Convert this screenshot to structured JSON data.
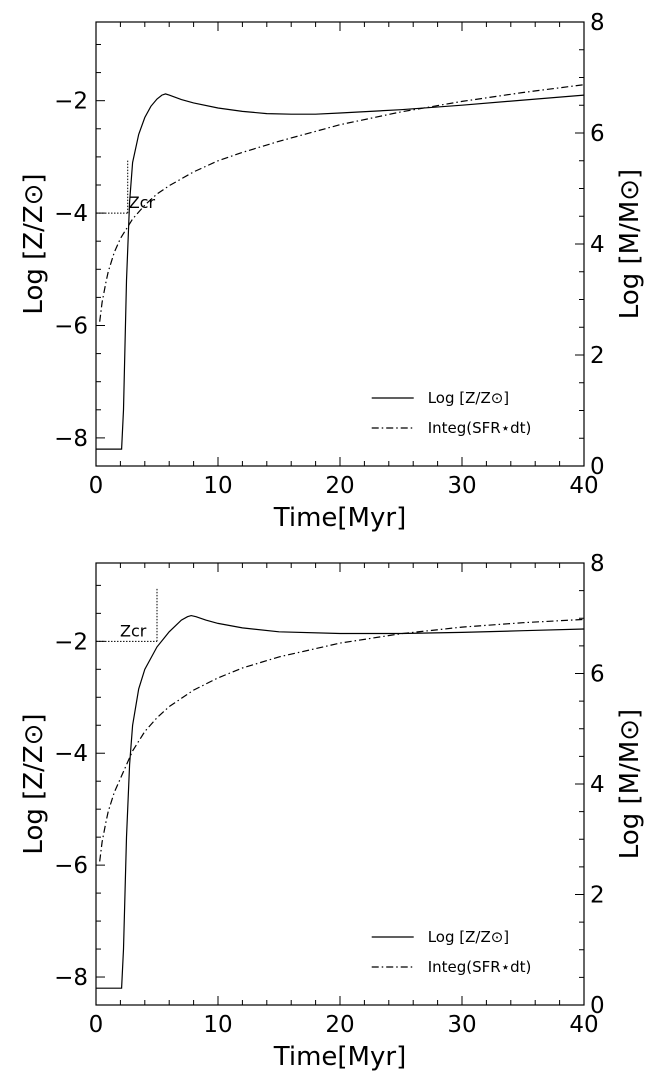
{
  "chart_data": [
    {
      "type": "line",
      "xlabel": "Time[Myr]",
      "ylabel_left": "Log [Z/Z⊙]",
      "ylabel_right": "Log [M/M⊙]",
      "xlim": [
        0,
        40
      ],
      "ylim_left": [
        -8.5,
        -0.6
      ],
      "ylim_right": [
        0,
        8
      ],
      "x_ticks": [
        0,
        10,
        20,
        30,
        40
      ],
      "y_ticks_left": [
        -8,
        -6,
        -4,
        -2
      ],
      "y_ticks_right": [
        0,
        2,
        4,
        6,
        8
      ],
      "grid": false,
      "legend_position": "lower-right",
      "annotation": {
        "text": "Zcr",
        "x": 2.6,
        "y": -4.0
      },
      "series": [
        {
          "name": "Log [Z/Z⊙]",
          "axis": "left",
          "style": "solid",
          "x": [
            0.0,
            2.1,
            2.25,
            2.5,
            2.75,
            3.0,
            3.5,
            4.0,
            4.5,
            5.0,
            5.4,
            5.7,
            6.0,
            7.0,
            8.0,
            10,
            12,
            14,
            16,
            18,
            20,
            25,
            30,
            35,
            40
          ],
          "y": [
            -8.2,
            -8.2,
            -7.5,
            -5.2,
            -3.8,
            -3.1,
            -2.6,
            -2.3,
            -2.1,
            -1.97,
            -1.9,
            -1.88,
            -1.9,
            -1.98,
            -2.04,
            -2.13,
            -2.19,
            -2.23,
            -2.24,
            -2.24,
            -2.22,
            -2.16,
            -2.08,
            -1.99,
            -1.9
          ]
        },
        {
          "name": "Integ(SFR⋆dt)",
          "axis": "right",
          "style": "dashdot",
          "x": [
            0.3,
            0.5,
            0.8,
            1.0,
            1.5,
            2.0,
            3.0,
            4.0,
            5.0,
            6.0,
            8.0,
            10,
            12,
            15,
            20,
            25,
            30,
            35,
            40
          ],
          "y": [
            2.6,
            2.95,
            3.3,
            3.5,
            3.85,
            4.1,
            4.45,
            4.7,
            4.9,
            5.05,
            5.3,
            5.5,
            5.65,
            5.85,
            6.15,
            6.38,
            6.57,
            6.73,
            6.87
          ]
        }
      ]
    },
    {
      "type": "line",
      "xlabel": "Time[Myr]",
      "ylabel_left": "Log [Z/Z⊙]",
      "ylabel_right": "Log [M/M⊙]",
      "xlim": [
        0,
        40
      ],
      "ylim_left": [
        -8.5,
        -0.6
      ],
      "ylim_right": [
        0,
        8
      ],
      "x_ticks": [
        0,
        10,
        20,
        30,
        40
      ],
      "y_ticks_left": [
        -8,
        -6,
        -4,
        -2
      ],
      "y_ticks_right": [
        0,
        2,
        4,
        6,
        8
      ],
      "grid": false,
      "legend_position": "lower-right",
      "annotation": {
        "text": "Zcr",
        "x": 5.0,
        "y": -2.0
      },
      "series": [
        {
          "name": "Log [Z/Z⊙]",
          "axis": "left",
          "style": "solid",
          "x": [
            0.0,
            2.1,
            2.25,
            2.5,
            2.75,
            3.0,
            3.5,
            4.0,
            5.0,
            6.0,
            7.0,
            7.5,
            7.8,
            8.2,
            9.0,
            10,
            12,
            15,
            20,
            25,
            30,
            35,
            40
          ],
          "y": [
            -8.2,
            -8.2,
            -7.5,
            -5.5,
            -4.2,
            -3.5,
            -2.85,
            -2.5,
            -2.1,
            -1.83,
            -1.62,
            -1.56,
            -1.54,
            -1.56,
            -1.62,
            -1.68,
            -1.76,
            -1.83,
            -1.86,
            -1.86,
            -1.84,
            -1.81,
            -1.78
          ]
        },
        {
          "name": "Integ(SFR⋆dt)",
          "axis": "right",
          "style": "dashdot",
          "x": [
            0.3,
            0.5,
            0.8,
            1.0,
            1.5,
            2.0,
            3.0,
            4.0,
            5.0,
            6.0,
            8.0,
            10,
            12,
            15,
            20,
            25,
            30,
            35,
            40
          ],
          "y": [
            2.6,
            2.95,
            3.3,
            3.5,
            3.85,
            4.1,
            4.6,
            4.95,
            5.2,
            5.4,
            5.7,
            5.92,
            6.1,
            6.3,
            6.55,
            6.72,
            6.84,
            6.92,
            6.98
          ]
        }
      ]
    }
  ]
}
